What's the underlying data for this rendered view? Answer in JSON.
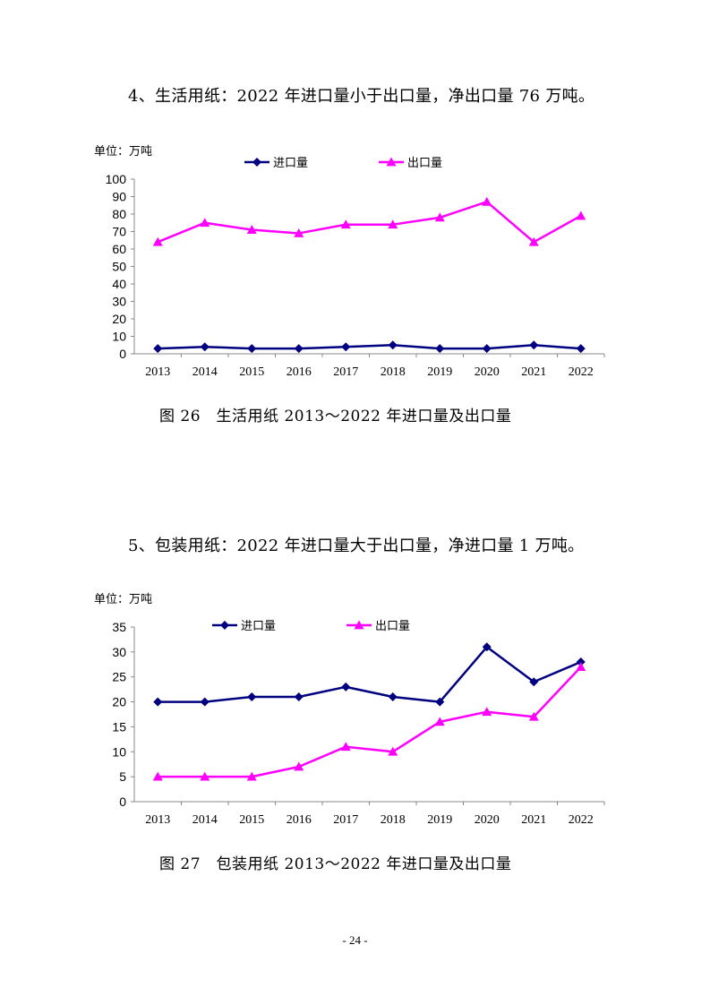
{
  "headings": [
    "4、生活用纸：2022 年进口量小于出口量，净出口量 76 万吨。",
    "5、包装用纸：2022 年进口量大于出口量，净进口量 1 万吨。"
  ],
  "captions": [
    "图 26　生活用纸 2013～2022 年进口量及出口量",
    "图 27　包装用纸 2013～2022 年进口量及出口量"
  ],
  "page_number": "- 24 -",
  "colors": {
    "import": "#000080",
    "export": "#ff00ff"
  },
  "chart_data": [
    {
      "type": "line",
      "unit_label": "单位：万吨",
      "categories": [
        "2013",
        "2014",
        "2015",
        "2016",
        "2017",
        "2018",
        "2019",
        "2020",
        "2021",
        "2022"
      ],
      "series": [
        {
          "name": "进口量",
          "marker": "diamond",
          "values": [
            3,
            4,
            3,
            3,
            4,
            5,
            3,
            3,
            5,
            3
          ]
        },
        {
          "name": "出口量",
          "marker": "triangle",
          "values": [
            64,
            75,
            71,
            69,
            74,
            74,
            78,
            87,
            64,
            79
          ]
        }
      ],
      "ylim": [
        0,
        100
      ],
      "yticks": [
        0,
        10,
        20,
        30,
        40,
        50,
        60,
        70,
        80,
        90,
        100
      ],
      "legend": "top"
    },
    {
      "type": "line",
      "unit_label": "单位：万吨",
      "categories": [
        "2013",
        "2014",
        "2015",
        "2016",
        "2017",
        "2018",
        "2019",
        "2020",
        "2021",
        "2022"
      ],
      "series": [
        {
          "name": "进口量",
          "marker": "diamond",
          "values": [
            20,
            20,
            21,
            21,
            23,
            21,
            20,
            31,
            24,
            28
          ]
        },
        {
          "name": "出口量",
          "marker": "triangle",
          "values": [
            5,
            5,
            5,
            7,
            11,
            10,
            16,
            18,
            17,
            27
          ]
        }
      ],
      "ylim": [
        0,
        35
      ],
      "yticks": [
        0,
        5,
        10,
        15,
        20,
        25,
        30,
        35
      ],
      "legend": "top"
    }
  ]
}
